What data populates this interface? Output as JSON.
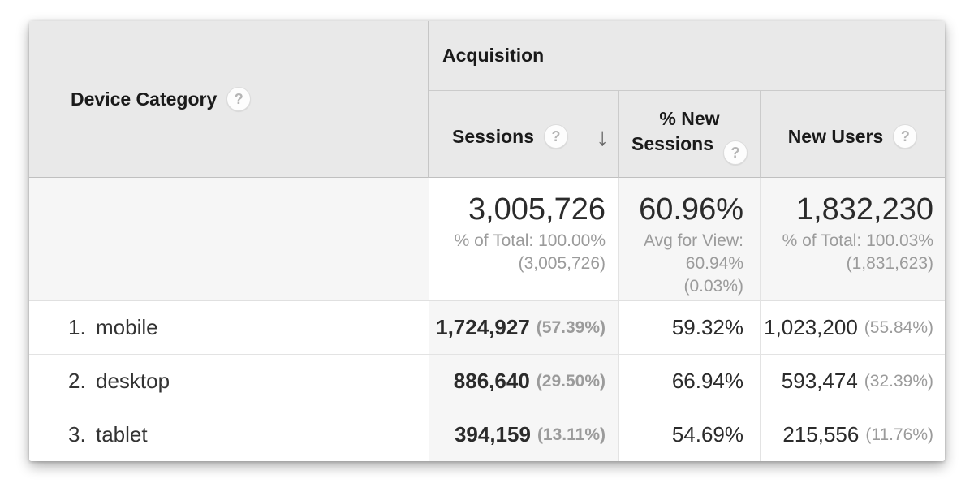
{
  "colors": {
    "header_bg": "#e9e9e9",
    "sorted_column_shade": "#f6f6f6",
    "page_bg": "#ffffff",
    "value_text": "#2b2b2b",
    "muted_text": "#9b9b9b"
  },
  "icons": {
    "help_glyph": "?",
    "sort_desc_glyph": "↓"
  },
  "table": {
    "dimension_column": {
      "label": "Device Category"
    },
    "metric_group": {
      "label": "Acquisition"
    },
    "metric_columns": [
      {
        "label": "Sessions",
        "sort": "descending"
      },
      {
        "label": "% New Sessions",
        "sort": "none"
      },
      {
        "label": "New Users",
        "sort": "none"
      }
    ],
    "totals": {
      "sessions": {
        "value": "3,005,726",
        "note_line1": "% of Total: 100.00%",
        "note_line2": "(3,005,726)"
      },
      "pct_new_sessions": {
        "value": "60.96%",
        "note_line1": "Avg for View:",
        "note_line2": "60.94%",
        "note_line3": "(0.03%)"
      },
      "new_users": {
        "value": "1,832,230",
        "note_line1": "% of Total: 100.03%",
        "note_line2": "(1,831,623)"
      }
    },
    "rows": [
      {
        "rank": "1.",
        "device": "mobile",
        "sessions": "1,724,927",
        "sessions_share": "(57.39%)",
        "pct_new_sessions": "59.32%",
        "new_users": "1,023,200",
        "new_users_share": "(55.84%)"
      },
      {
        "rank": "2.",
        "device": "desktop",
        "sessions": "886,640",
        "sessions_share": "(29.50%)",
        "pct_new_sessions": "66.94%",
        "new_users": "593,474",
        "new_users_share": "(32.39%)"
      },
      {
        "rank": "3.",
        "device": "tablet",
        "sessions": "394,159",
        "sessions_share": "(13.11%)",
        "pct_new_sessions": "54.69%",
        "new_users": "215,556",
        "new_users_share": "(11.76%)"
      }
    ]
  }
}
